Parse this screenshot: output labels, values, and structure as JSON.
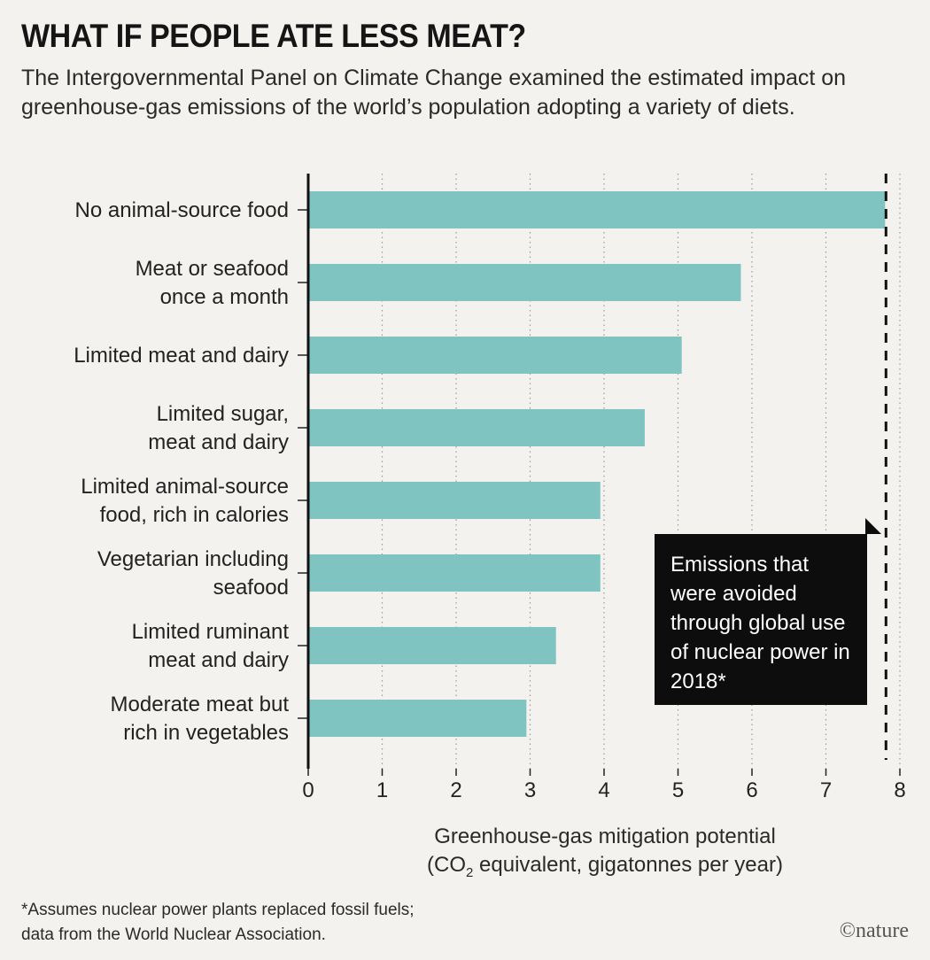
{
  "header": {
    "title": "WHAT IF PEOPLE ATE LESS MEAT?",
    "subtitle": "The Intergovernmental Panel on Climate Change examined the estimated impact on greenhouse-gas emissions of the world’s population adopting a variety of diets."
  },
  "chart_data": {
    "type": "bar",
    "orientation": "horizontal",
    "categories": [
      [
        "No animal-source food"
      ],
      [
        "Meat or seafood",
        "once a month"
      ],
      [
        "Limited meat and dairy"
      ],
      [
        "Limited sugar,",
        "meat and dairy"
      ],
      [
        "Limited animal-source",
        "food, rich in calories"
      ],
      [
        "Vegetarian including",
        "seafood"
      ],
      [
        "Limited ruminant",
        "meat and dairy"
      ],
      [
        "Moderate meat but",
        "rich in vegetables"
      ]
    ],
    "values": [
      7.8,
      5.85,
      5.05,
      4.55,
      3.95,
      3.95,
      3.35,
      2.95
    ],
    "xlim": [
      0,
      8
    ],
    "xticks": [
      "0",
      "1",
      "2",
      "3",
      "4",
      "5",
      "6",
      "7",
      "8"
    ],
    "xlabel_line1": "Greenhouse-gas mitigation potential",
    "xlabel_line2_pre": "(CO",
    "xlabel_line2_sub": "2",
    "xlabel_line2_post": " equivalent, gigatonnes per year)",
    "reference_line": {
      "value": 7.8,
      "style": "dashed"
    },
    "grid": "vertical dotted",
    "bar_color": "#80c4c2"
  },
  "callout": {
    "text": "Emissions that were avoided through global use of nuclear power in 2018*"
  },
  "footnote": {
    "line1": "*Assumes nuclear power plants replaced fossil fuels;",
    "line2": "data from the World Nuclear Association."
  },
  "brand": "©nature"
}
